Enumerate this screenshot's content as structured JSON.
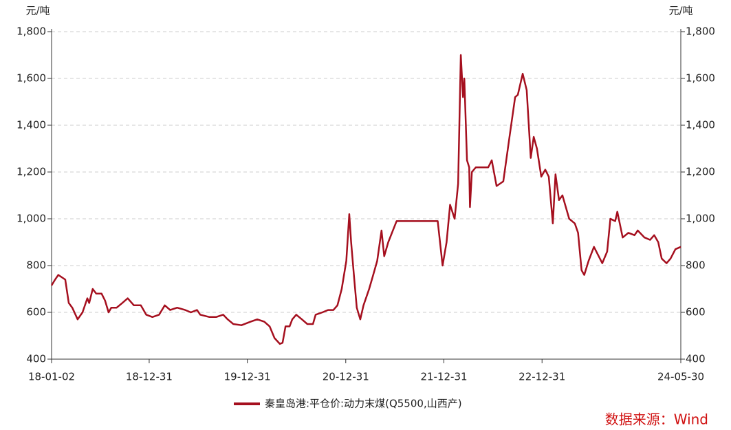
{
  "chart_data": {
    "type": "line",
    "y_label": "元/吨",
    "y2_label": "元/吨",
    "x": [
      "18-01-02",
      "18-01-15",
      "18-01-27",
      "18-02-22",
      "18-03-07",
      "18-03-20",
      "18-04-09",
      "18-04-27",
      "18-05-15",
      "18-05-22",
      "18-06-04",
      "18-06-17",
      "18-07-07",
      "18-07-20",
      "18-08-02",
      "18-08-12",
      "18-09-01",
      "18-09-22",
      "18-10-12",
      "18-11-04",
      "18-11-30",
      "18-12-20",
      "19-01-12",
      "19-02-06",
      "19-02-27",
      "19-03-19",
      "19-04-14",
      "19-05-14",
      "19-06-04",
      "19-06-27",
      "19-07-09",
      "19-08-12",
      "19-09-06",
      "19-10-02",
      "19-10-19",
      "19-11-09",
      "19-12-09",
      "20-01-12",
      "20-02-06",
      "20-03-03",
      "20-03-23",
      "20-04-10",
      "20-04-30",
      "20-05-10",
      "20-05-21",
      "20-06-05",
      "20-06-15",
      "20-06-30",
      "20-07-21",
      "20-08-10",
      "20-08-31",
      "20-09-10",
      "20-10-05",
      "20-10-26",
      "20-11-15",
      "20-11-30",
      "20-12-16",
      "21-01-02",
      "21-01-13",
      "21-01-20",
      "21-01-31",
      "21-02-10",
      "21-02-23",
      "21-03-07",
      "21-03-28",
      "21-04-12",
      "21-04-27",
      "21-05-13",
      "21-05-23",
      "21-06-07",
      "21-07-08",
      "21-12-08",
      "21-12-26",
      "22-01-10",
      "22-01-23",
      "22-02-09",
      "22-02-22",
      "22-03-04",
      "22-03-12",
      "22-03-17",
      "22-03-27",
      "22-04-04",
      "22-04-07",
      "22-04-14",
      "22-04-29",
      "22-06-14",
      "22-06-27",
      "22-07-15",
      "22-08-09",
      "22-09-01",
      "22-09-22",
      "22-10-02",
      "22-10-20",
      "22-11-04",
      "22-11-19",
      "22-11-30",
      "22-12-12",
      "22-12-28",
      "23-01-12",
      "23-01-25",
      "23-02-09",
      "23-02-19",
      "23-03-04",
      "23-03-17",
      "23-04-11",
      "23-05-02",
      "23-05-14",
      "23-05-27",
      "23-06-06",
      "23-06-22",
      "23-07-12",
      "23-08-12",
      "23-08-30",
      "23-09-11",
      "23-09-29",
      "23-10-07",
      "23-10-27",
      "23-11-17",
      "23-12-10",
      "23-12-22",
      "24-01-16",
      "24-02-06",
      "24-02-21",
      "24-03-07",
      "24-03-20",
      "24-04-07",
      "24-04-22",
      "24-05-10",
      "24-05-30"
    ],
    "series": [
      {
        "name": "秦皇岛港:平仓价:动力末煤(Q5500,山西产)",
        "color": "#a50f1e",
        "values": [
          715,
          740,
          760,
          740,
          640,
          620,
          570,
          600,
          660,
          640,
          700,
          680,
          680,
          650,
          600,
          620,
          620,
          640,
          660,
          630,
          630,
          590,
          580,
          590,
          630,
          610,
          620,
          610,
          600,
          610,
          590,
          580,
          580,
          590,
          570,
          550,
          545,
          560,
          570,
          560,
          540,
          490,
          465,
          470,
          540,
          540,
          570,
          590,
          570,
          550,
          550,
          590,
          600,
          610,
          610,
          630,
          700,
          820,
          1020,
          900,
          750,
          620,
          570,
          630,
          700,
          760,
          820,
          950,
          840,
          900,
          990,
          990,
          800,
          900,
          1060,
          1000,
          1150,
          1700,
          1520,
          1600,
          1250,
          1220,
          1050,
          1200,
          1220,
          1220,
          1250,
          1140,
          1160,
          1350,
          1520,
          1530,
          1620,
          1550,
          1260,
          1350,
          1300,
          1180,
          1210,
          1180,
          980,
          1190,
          1080,
          1100,
          1000,
          980,
          940,
          780,
          760,
          820,
          880,
          810,
          860,
          1000,
          990,
          1030,
          920,
          940,
          930,
          950,
          920,
          910,
          930,
          900,
          830,
          810,
          830,
          870,
          880
        ]
      }
    ],
    "xlim": [
      "18-01-02",
      "24-05-30"
    ],
    "xticks": [
      "18-01-02",
      "18-12-31",
      "19-12-31",
      "20-12-31",
      "21-12-31",
      "22-12-31",
      "24-05-30"
    ],
    "ylim": [
      400,
      1800
    ],
    "yticks": [
      400,
      600,
      800,
      {
        "value": 1000,
        "label": "1,000"
      },
      {
        "value": 1200,
        "label": "1,200"
      },
      {
        "value": 1400,
        "label": "1,400"
      },
      {
        "value": 1600,
        "label": "1,600"
      },
      {
        "value": 1800,
        "label": "1,800"
      }
    ],
    "y2lim": [
      400,
      1800
    ],
    "y2ticks": [
      400,
      600,
      800,
      {
        "value": 1000,
        "label": "1,000"
      },
      {
        "value": 1200,
        "label": "1,200"
      },
      {
        "value": 1400,
        "label": "1,400"
      },
      {
        "value": 1600,
        "label": "1,600"
      },
      {
        "value": 1800,
        "label": "1,800"
      }
    ],
    "grid": true,
    "source": "数据来源：Wind"
  }
}
